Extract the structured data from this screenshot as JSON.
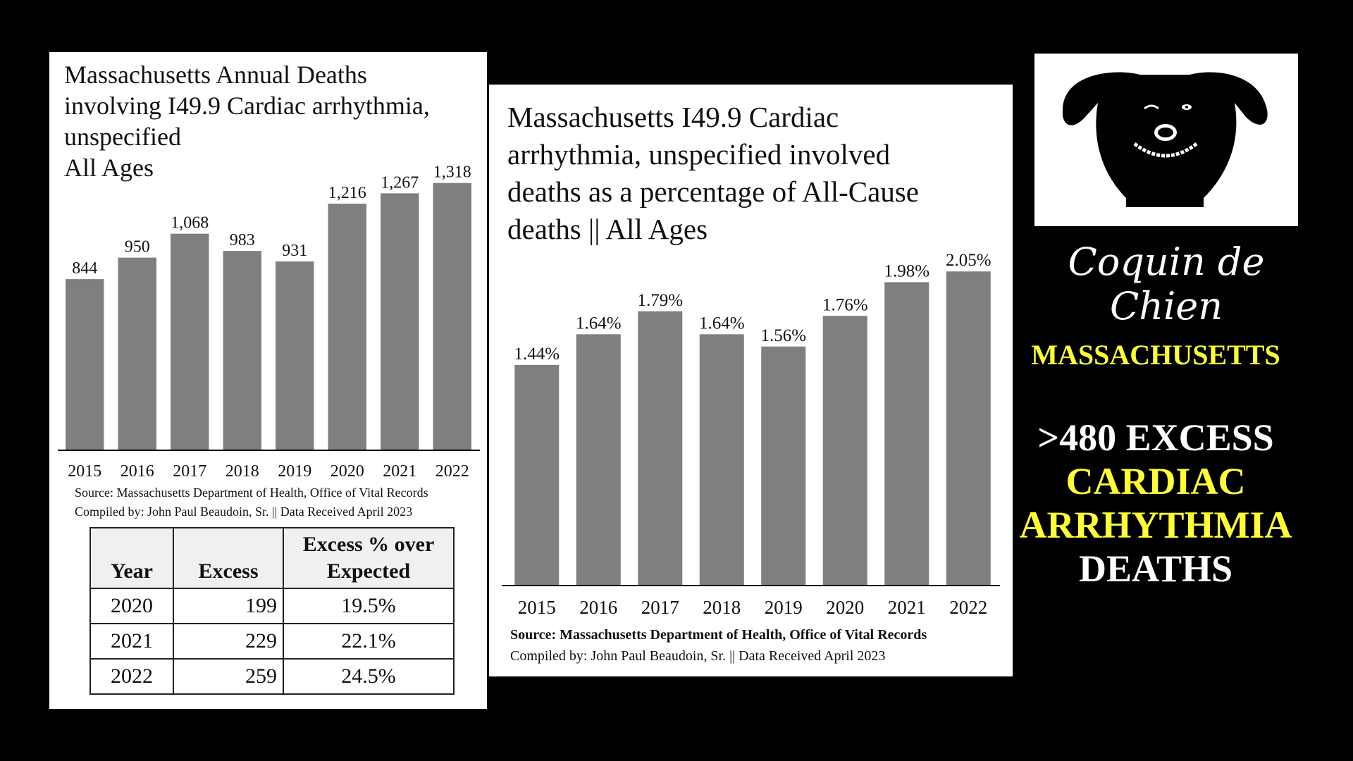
{
  "chart_data": [
    {
      "type": "bar",
      "title": "Massachusetts Annual Deaths involving I49.9 Cardiac arrhythmia, unspecified All Ages",
      "title_lines": [
        "Massachusetts Annual Deaths",
        "involving I49.9 Cardiac arrhythmia,",
        "unspecified",
        "All Ages"
      ],
      "categories": [
        "2015",
        "2016",
        "2017",
        "2018",
        "2019",
        "2020",
        "2021",
        "2022"
      ],
      "values": [
        844,
        950,
        1068,
        983,
        931,
        1216,
        1267,
        1318
      ],
      "value_labels": [
        "844",
        "950",
        "1,068",
        "983",
        "931",
        "1,216",
        "1,267",
        "1,318"
      ],
      "bar_color": "#7f7f7f",
      "ylim": [
        0,
        1390
      ],
      "grid": false,
      "source": "Source:  Massachusetts Department of Health, Office of Vital Records",
      "compiled": "Compiled by:  John Paul Beaudoin, Sr. || Data Received April 2023"
    },
    {
      "type": "bar",
      "title": "Massachusetts I49.9 Cardiac arrhythmia, unspecified involved deaths as a percentage of All-Cause deaths || All Ages",
      "title_lines": [
        "Massachusetts I49.9 Cardiac",
        "arrhythmia, unspecified involved",
        "deaths as a percentage of All-Cause",
        "deaths || All Ages"
      ],
      "categories": [
        "2015",
        "2016",
        "2017",
        "2018",
        "2019",
        "2020",
        "2021",
        "2022"
      ],
      "values": [
        1.44,
        1.64,
        1.79,
        1.64,
        1.56,
        1.76,
        1.98,
        2.05
      ],
      "value_labels": [
        "1.44%",
        "1.64%",
        "1.79%",
        "1.64%",
        "1.56%",
        "1.76%",
        "1.98%",
        "2.05%"
      ],
      "bar_color": "#7f7f7f",
      "ylim": [
        0,
        2.35
      ],
      "grid": false,
      "source": "Source:  Massachusetts Department of Health, Office of Vital Records",
      "compiled": "Compiled by:  John Paul Beaudoin, Sr. || Data Received April 2023"
    }
  ],
  "excess_table": {
    "headers": {
      "year": "Year",
      "excess": "Excess",
      "pct_line1": "Excess % over",
      "pct_line2": "Expected"
    },
    "rows": [
      {
        "year": "2020",
        "excess": "199",
        "pct": "19.5%"
      },
      {
        "year": "2021",
        "excess": "229",
        "pct": "22.1%"
      },
      {
        "year": "2022",
        "excess": "259",
        "pct": "24.5%"
      }
    ]
  },
  "brand": {
    "name": "Coquin de Chien",
    "logo_icon": "dog-face-icon"
  },
  "sidebar": {
    "state": "MASSACHUSETTS",
    "headline_line1": ">480 EXCESS",
    "headline_line2": "CARDIAC",
    "headline_line3": "ARRHYTHMIA",
    "headline_line4": "DEATHS"
  },
  "colors": {
    "background": "#000000",
    "accent_yellow": "#ffff33",
    "bar": "#7f7f7f"
  }
}
